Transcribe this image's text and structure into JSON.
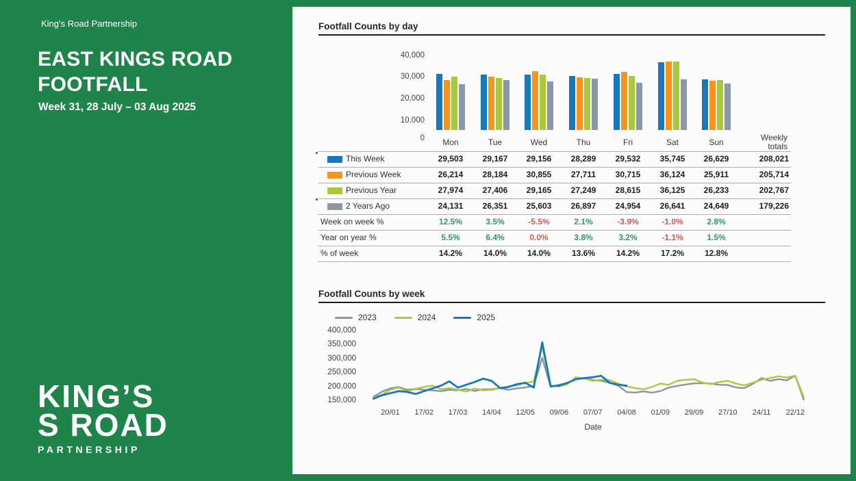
{
  "sidebar": {
    "brand": "King’s Road Partnership",
    "title_line1": "EAST KINGS ROAD",
    "title_line2": "FOOTFALL",
    "subtitle": "Week 31, 28 July – 03 Aug 2025",
    "logo_line1": "KING’S",
    "logo_line2": "S ROAD",
    "logo_line3": "PARTNERSHIP",
    "bg_color": "#1F8449"
  },
  "colors": {
    "positive": "#2E9673",
    "negative": "#CF5B4C",
    "plain": "#1c1c1c",
    "accent_green": "#1F8449"
  },
  "chart_data": [
    {
      "type": "bar",
      "title": "Footfall Counts by day",
      "categories": [
        "Mon",
        "Tue",
        "Wed",
        "Thu",
        "Fri",
        "Sat",
        "Sun"
      ],
      "weekly_totals_header": [
        "Weekly",
        "totals"
      ],
      "ylim": [
        0,
        40000
      ],
      "yticks": [
        "40,000",
        "30,000",
        "20,000",
        "10,000",
        "0"
      ],
      "grid": false,
      "series": [
        {
          "name": "This Week",
          "color": "#1878BE",
          "values": [
            29503,
            29167,
            29156,
            28289,
            29532,
            35745,
            26629
          ],
          "total": 208021
        },
        {
          "name": "Previous Week",
          "color": "#F79420",
          "values": [
            26214,
            28184,
            30855,
            27711,
            30715,
            36124,
            25911
          ],
          "total": 205714
        },
        {
          "name": "Previous Year",
          "color": "#A9C938",
          "values": [
            27974,
            27406,
            29165,
            27249,
            28615,
            36125,
            26233
          ],
          "total": 202767
        },
        {
          "name": "2 Years Ago",
          "color": "#8B98A6",
          "values": [
            24131,
            26351,
            25603,
            26897,
            24954,
            26641,
            24649
          ],
          "total": 179226
        }
      ],
      "percent_rows": [
        {
          "label": "Week on week %",
          "values": [
            "12.5%",
            "3.5%",
            "-5.5%",
            "2.1%",
            "-3.9%",
            "-1.0%",
            "2.8%"
          ],
          "tones": [
            "pos",
            "pos",
            "neg",
            "pos",
            "neg",
            "neg",
            "pos"
          ]
        },
        {
          "label": "Year on year %",
          "values": [
            "5.5%",
            "6.4%",
            "0.0%",
            "3.8%",
            "3.2%",
            "-1.1%",
            "1.5%"
          ],
          "tones": [
            "pos",
            "pos",
            "neg",
            "pos",
            "pos",
            "neg",
            "pos"
          ]
        },
        {
          "label": "% of week",
          "values": [
            "14.2%",
            "14.0%",
            "14.0%",
            "13.6%",
            "14.2%",
            "17.2%",
            "12.8%"
          ],
          "tones": [
            "plain",
            "plain",
            "plain",
            "plain",
            "plain",
            "plain",
            "plain"
          ]
        }
      ]
    },
    {
      "type": "line",
      "title": "Footfall Counts by week",
      "xlabel": "Date",
      "ylim": [
        150000,
        400000
      ],
      "yticks": [
        "400,000",
        "350,000",
        "300,000",
        "250,000",
        "200,000",
        "150,000"
      ],
      "xticks": [
        "20/01",
        "17/02",
        "17/03",
        "14/04",
        "12/05",
        "09/06",
        "07/07",
        "04/08",
        "01/09",
        "29/09",
        "27/10",
        "24/11",
        "22/12"
      ],
      "tick_start_week": 3,
      "weeks_per_tick": 4,
      "legend_position": "top-left",
      "series": [
        {
          "name": "2023",
          "color": "#8795A3",
          "start_week": 1,
          "values": [
            165000,
            183000,
            195000,
            200000,
            190000,
            193000,
            190000,
            188000,
            185000,
            190000,
            188000,
            193000,
            186000,
            192000,
            192000,
            196000,
            190000,
            195000,
            198000,
            205000,
            305000,
            200000,
            208000,
            214000,
            228000,
            232000,
            225000,
            222000,
            215000,
            205000,
            182000,
            180000,
            184000,
            180000,
            185000,
            198000,
            204000,
            209000,
            213000,
            214000,
            212000,
            208000,
            207000,
            198000,
            196000,
            212000,
            232000,
            222000,
            228000,
            224000,
            240000,
            155000
          ]
        },
        {
          "name": "2024",
          "color": "#ADC93B",
          "start_week": 1,
          "values": [
            162000,
            172000,
            190000,
            198000,
            184000,
            194000,
            200000,
            205000,
            192000,
            196000,
            190000,
            184000,
            194000,
            188000,
            190000,
            196000,
            202000,
            206000,
            215000,
            220000,
            345000,
            205000,
            202000,
            210000,
            235000,
            230000,
            222000,
            226000,
            224000,
            212000,
            202000,
            196000,
            192000,
            200000,
            212000,
            208000,
            222000,
            226000,
            228000,
            216000,
            210000,
            218000,
            222000,
            212000,
            206000,
            216000,
            226000,
            232000,
            238000,
            234000,
            240000,
            165000
          ]
        },
        {
          "name": "2025",
          "color": "#1878BE",
          "start_week": 1,
          "values": [
            158000,
            170000,
            178000,
            185000,
            182000,
            175000,
            185000,
            195000,
            205000,
            220000,
            198000,
            208000,
            218000,
            230000,
            222000,
            196000,
            200000,
            210000,
            215000,
            198000,
            360000,
            203000,
            205000,
            215000,
            228000,
            232000,
            235000,
            240000,
            215000,
            208000,
            205000
          ]
        }
      ]
    }
  ]
}
